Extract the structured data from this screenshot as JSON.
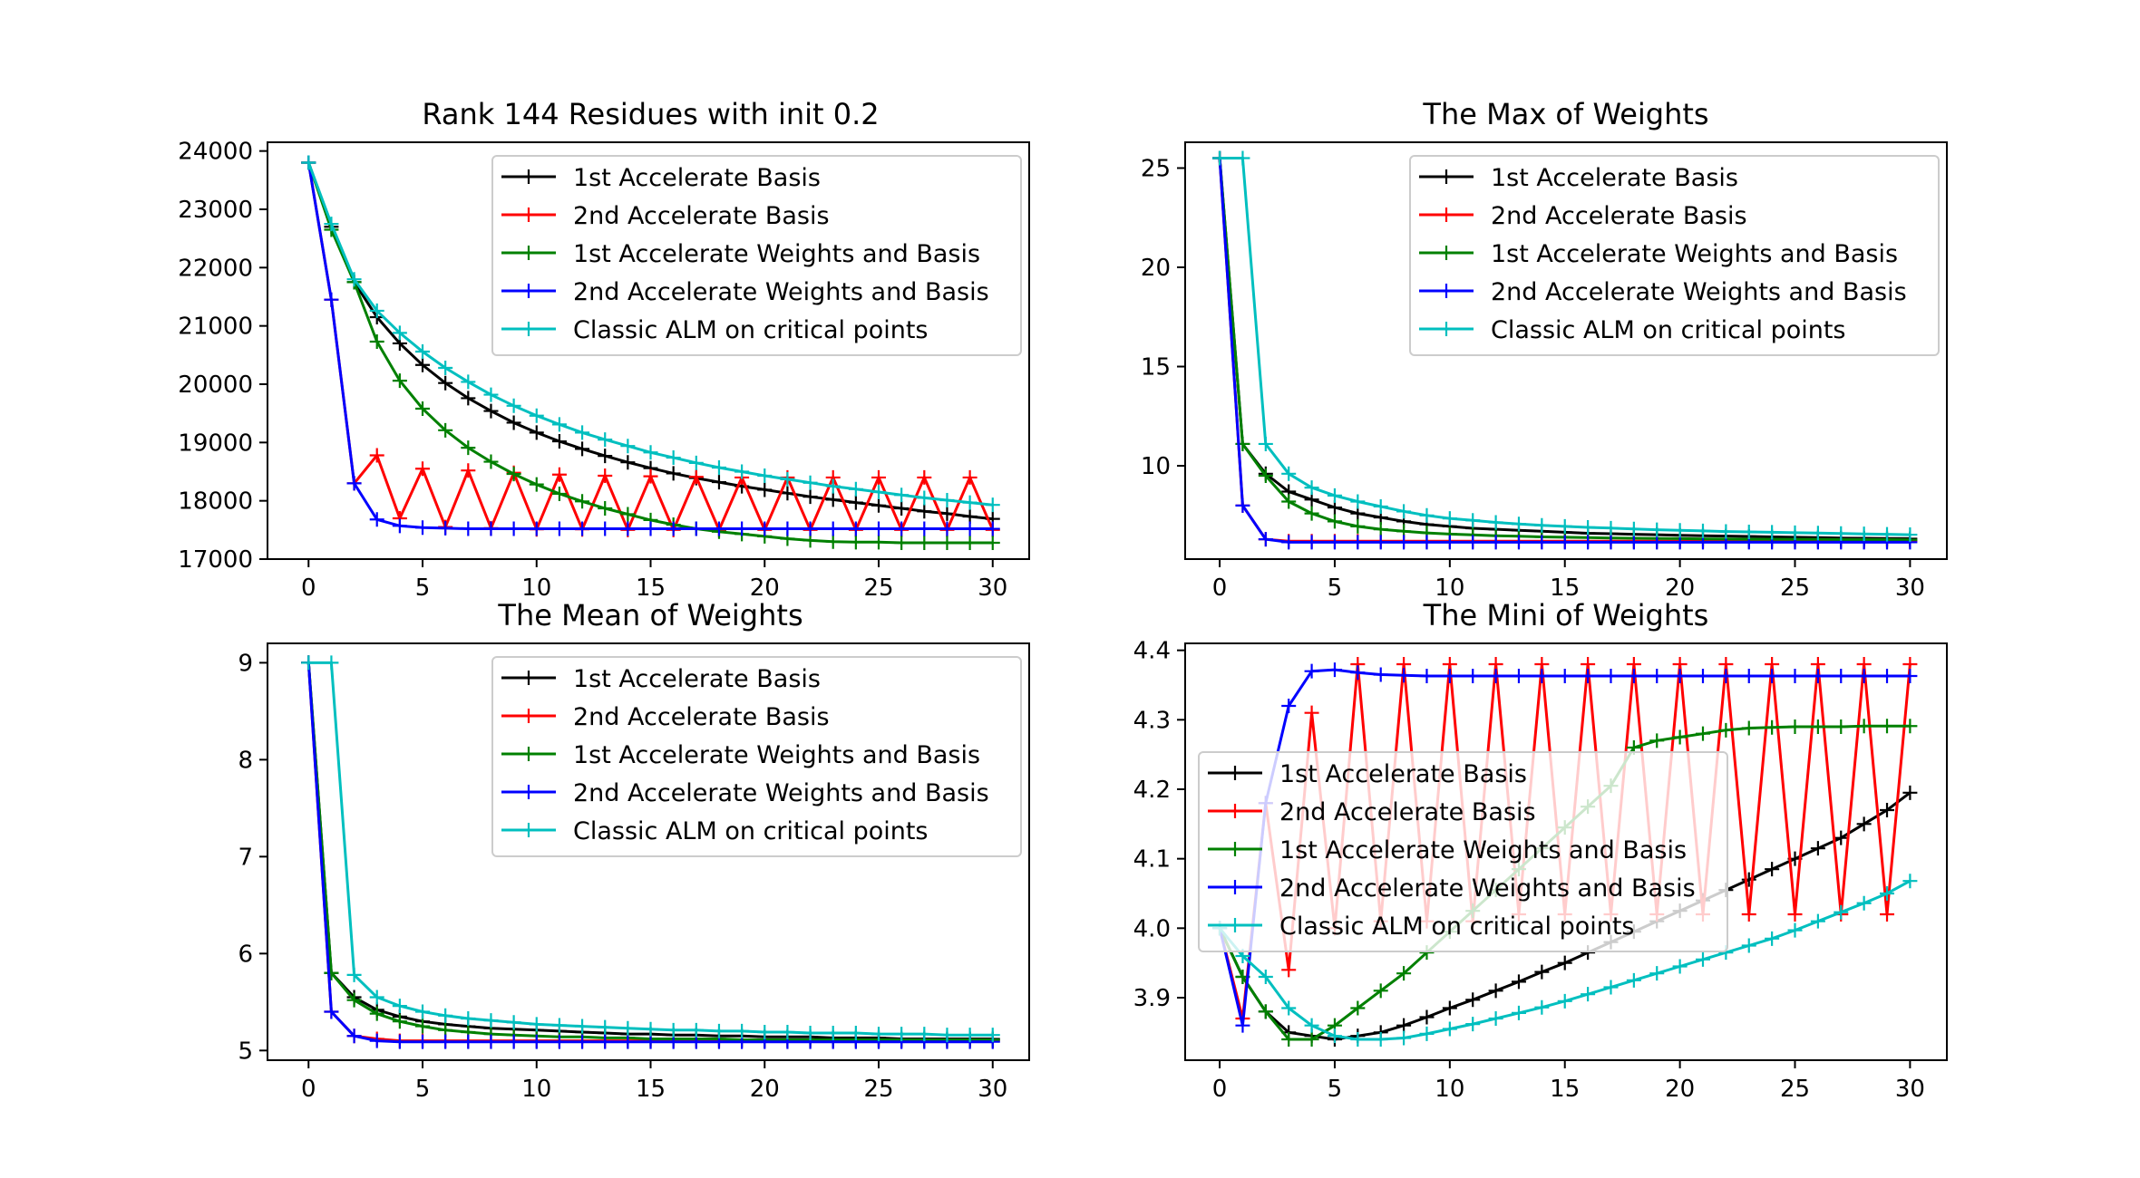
{
  "colors": {
    "black": "#000000",
    "red": "#ff0000",
    "green": "#008000",
    "blue": "#0000ff",
    "cyan": "#00bfbf"
  },
  "chart_data": [
    {
      "type": "line",
      "title": "Rank 144 Residues with init 0.2",
      "xlabel": "",
      "ylabel": "",
      "xlim": [
        -1.8,
        31.6
      ],
      "ylim": [
        17000,
        24150
      ],
      "xticks": [
        0,
        5,
        10,
        15,
        20,
        25,
        30
      ],
      "yticks": [
        17000,
        18000,
        19000,
        20000,
        21000,
        22000,
        23000,
        24000
      ],
      "legend_position": "upper-right",
      "x": [
        0,
        1,
        2,
        3,
        4,
        5,
        6,
        7,
        8,
        9,
        10,
        11,
        12,
        13,
        14,
        15,
        16,
        17,
        18,
        19,
        20,
        21,
        22,
        23,
        24,
        25,
        26,
        27,
        28,
        29,
        30
      ],
      "series": [
        {
          "name": "1st Accelerate Basis",
          "color_key": "black",
          "values": [
            23800,
            22700,
            21750,
            21150,
            20700,
            20330,
            20020,
            19760,
            19540,
            19340,
            19170,
            19020,
            18890,
            18770,
            18660,
            18560,
            18470,
            18390,
            18320,
            18250,
            18190,
            18130,
            18070,
            18020,
            17970,
            17920,
            17870,
            17820,
            17780,
            17730,
            17690
          ]
        },
        {
          "name": "2nd Accelerate Basis",
          "color_key": "red",
          "values": [
            23800,
            21450,
            18300,
            18780,
            17700,
            18550,
            17550,
            18520,
            17530,
            18480,
            17510,
            18450,
            17510,
            18430,
            17500,
            18420,
            17500,
            18410,
            17500,
            18400,
            17500,
            18400,
            17500,
            18400,
            17500,
            18400,
            17500,
            18400,
            17500,
            18400,
            17500
          ]
        },
        {
          "name": "1st Accelerate Weights and Basis",
          "color_key": "green",
          "values": [
            23800,
            22650,
            21750,
            20730,
            20060,
            19580,
            19210,
            18910,
            18670,
            18460,
            18280,
            18120,
            17990,
            17870,
            17770,
            17670,
            17590,
            17520,
            17470,
            17430,
            17390,
            17350,
            17320,
            17300,
            17290,
            17290,
            17280,
            17280,
            17280,
            17280,
            17280
          ]
        },
        {
          "name": "2nd Accelerate Weights and Basis",
          "color_key": "blue",
          "values": [
            23800,
            21450,
            18300,
            17680,
            17570,
            17540,
            17530,
            17520,
            17520,
            17520,
            17520,
            17520,
            17520,
            17520,
            17520,
            17520,
            17520,
            17520,
            17520,
            17520,
            17520,
            17520,
            17520,
            17520,
            17520,
            17520,
            17520,
            17520,
            17520,
            17520,
            17520
          ]
        },
        {
          "name": "Classic ALM on critical points",
          "color_key": "cyan",
          "values": [
            23800,
            22750,
            21800,
            21260,
            20880,
            20560,
            20280,
            20040,
            19820,
            19630,
            19460,
            19310,
            19170,
            19050,
            18940,
            18830,
            18740,
            18650,
            18570,
            18500,
            18430,
            18370,
            18310,
            18250,
            18200,
            18150,
            18100,
            18050,
            18010,
            17970,
            17930
          ]
        }
      ]
    },
    {
      "type": "line",
      "title": "The Max of Weights",
      "xlabel": "",
      "ylabel": "",
      "xlim": [
        -1.5,
        31.6
      ],
      "ylim": [
        5.3,
        26.3
      ],
      "xticks": [
        0,
        5,
        10,
        15,
        20,
        25,
        30
      ],
      "yticks": [
        10,
        15,
        20,
        25
      ],
      "legend_position": "upper-right",
      "x": [
        0,
        1,
        2,
        3,
        4,
        5,
        6,
        7,
        8,
        9,
        10,
        11,
        12,
        13,
        14,
        15,
        16,
        17,
        18,
        19,
        20,
        21,
        22,
        23,
        24,
        25,
        26,
        27,
        28,
        29,
        30
      ],
      "series": [
        {
          "name": "1st Accelerate Basis",
          "color_key": "black",
          "values": [
            25.5,
            11.1,
            9.6,
            8.7,
            8.3,
            7.9,
            7.6,
            7.4,
            7.2,
            7.05,
            6.95,
            6.85,
            6.8,
            6.75,
            6.7,
            6.65,
            6.6,
            6.58,
            6.55,
            6.53,
            6.5,
            6.48,
            6.46,
            6.44,
            6.42,
            6.4,
            6.38,
            6.36,
            6.35,
            6.34,
            6.33
          ]
        },
        {
          "name": "2nd Accelerate Basis",
          "color_key": "red",
          "values": [
            25.5,
            8.0,
            6.3,
            6.2,
            6.2,
            6.2,
            6.2,
            6.2,
            6.2,
            6.2,
            6.2,
            6.2,
            6.2,
            6.2,
            6.2,
            6.2,
            6.2,
            6.2,
            6.2,
            6.2,
            6.2,
            6.2,
            6.2,
            6.2,
            6.2,
            6.2,
            6.2,
            6.2,
            6.2,
            6.2,
            6.2
          ]
        },
        {
          "name": "1st Accelerate Weights and Basis",
          "color_key": "green",
          "values": [
            25.5,
            11.1,
            9.5,
            8.2,
            7.6,
            7.2,
            6.95,
            6.8,
            6.7,
            6.62,
            6.56,
            6.52,
            6.48,
            6.45,
            6.42,
            6.4,
            6.38,
            6.36,
            6.35,
            6.34,
            6.33,
            6.32,
            6.31,
            6.3,
            6.3,
            6.29,
            6.29,
            6.28,
            6.28,
            6.28,
            6.27
          ]
        },
        {
          "name": "2nd Accelerate Weights and Basis",
          "color_key": "blue",
          "values": [
            25.5,
            8.0,
            6.3,
            6.15,
            6.15,
            6.15,
            6.15,
            6.15,
            6.15,
            6.15,
            6.15,
            6.15,
            6.15,
            6.15,
            6.15,
            6.15,
            6.15,
            6.15,
            6.15,
            6.15,
            6.15,
            6.15,
            6.15,
            6.15,
            6.15,
            6.15,
            6.15,
            6.15,
            6.15,
            6.15,
            6.15
          ]
        },
        {
          "name": "Classic ALM on critical points",
          "color_key": "cyan",
          "values": [
            25.5,
            25.5,
            11.1,
            9.6,
            8.9,
            8.5,
            8.2,
            7.95,
            7.7,
            7.5,
            7.35,
            7.25,
            7.15,
            7.07,
            7.0,
            6.95,
            6.9,
            6.86,
            6.82,
            6.78,
            6.75,
            6.72,
            6.69,
            6.67,
            6.65,
            6.63,
            6.61,
            6.59,
            6.57,
            6.55,
            6.53
          ]
        }
      ]
    },
    {
      "type": "line",
      "title": "The Mean of Weights",
      "xlabel": "",
      "ylabel": "",
      "xlim": [
        -1.8,
        31.6
      ],
      "ylim": [
        4.9,
        9.2
      ],
      "xticks": [
        0,
        5,
        10,
        15,
        20,
        25,
        30
      ],
      "yticks": [
        5,
        6,
        7,
        8,
        9
      ],
      "legend_position": "upper-right",
      "x": [
        0,
        1,
        2,
        3,
        4,
        5,
        6,
        7,
        8,
        9,
        10,
        11,
        12,
        13,
        14,
        15,
        16,
        17,
        18,
        19,
        20,
        21,
        22,
        23,
        24,
        25,
        26,
        27,
        28,
        29,
        30
      ],
      "series": [
        {
          "name": "1st Accelerate Basis",
          "color_key": "black",
          "values": [
            9.0,
            5.8,
            5.55,
            5.42,
            5.35,
            5.3,
            5.27,
            5.25,
            5.23,
            5.22,
            5.21,
            5.2,
            5.19,
            5.18,
            5.17,
            5.17,
            5.16,
            5.16,
            5.15,
            5.15,
            5.14,
            5.14,
            5.14,
            5.13,
            5.13,
            5.13,
            5.12,
            5.12,
            5.12,
            5.12,
            5.12
          ]
        },
        {
          "name": "2nd Accelerate Basis",
          "color_key": "red",
          "values": [
            9.0,
            5.4,
            5.15,
            5.12,
            5.1,
            5.1,
            5.1,
            5.1,
            5.1,
            5.1,
            5.1,
            5.1,
            5.1,
            5.1,
            5.1,
            5.1,
            5.1,
            5.1,
            5.1,
            5.1,
            5.1,
            5.1,
            5.1,
            5.1,
            5.1,
            5.1,
            5.1,
            5.1,
            5.1,
            5.1,
            5.1
          ]
        },
        {
          "name": "1st Accelerate Weights and Basis",
          "color_key": "green",
          "values": [
            9.0,
            5.8,
            5.52,
            5.38,
            5.3,
            5.25,
            5.21,
            5.19,
            5.17,
            5.16,
            5.15,
            5.14,
            5.14,
            5.13,
            5.13,
            5.12,
            5.12,
            5.12,
            5.12,
            5.11,
            5.11,
            5.11,
            5.11,
            5.11,
            5.11,
            5.11,
            5.11,
            5.11,
            5.11,
            5.11,
            5.11
          ]
        },
        {
          "name": "2nd Accelerate Weights and Basis",
          "color_key": "blue",
          "values": [
            9.0,
            5.4,
            5.15,
            5.1,
            5.09,
            5.09,
            5.09,
            5.09,
            5.09,
            5.09,
            5.09,
            5.09,
            5.09,
            5.09,
            5.09,
            5.09,
            5.09,
            5.09,
            5.09,
            5.09,
            5.09,
            5.09,
            5.09,
            5.09,
            5.09,
            5.09,
            5.09,
            5.09,
            5.09,
            5.09,
            5.09
          ]
        },
        {
          "name": "Classic ALM on critical points",
          "color_key": "cyan",
          "values": [
            9.0,
            9.0,
            5.78,
            5.55,
            5.46,
            5.4,
            5.36,
            5.33,
            5.31,
            5.29,
            5.27,
            5.26,
            5.25,
            5.24,
            5.23,
            5.22,
            5.21,
            5.21,
            5.2,
            5.2,
            5.19,
            5.19,
            5.18,
            5.18,
            5.18,
            5.17,
            5.17,
            5.17,
            5.16,
            5.16,
            5.16
          ]
        }
      ]
    },
    {
      "type": "line",
      "title": "The Mini of Weights",
      "xlabel": "",
      "ylabel": "",
      "xlim": [
        -1.5,
        31.6
      ],
      "ylim": [
        3.81,
        4.41
      ],
      "xticks": [
        0,
        5,
        10,
        15,
        20,
        25,
        30
      ],
      "yticks": [
        3.9,
        4.0,
        4.1,
        4.2,
        4.3,
        4.4
      ],
      "legend_position": "center-left",
      "x": [
        0,
        1,
        2,
        3,
        4,
        5,
        6,
        7,
        8,
        9,
        10,
        11,
        12,
        13,
        14,
        15,
        16,
        17,
        18,
        19,
        20,
        21,
        22,
        23,
        24,
        25,
        26,
        27,
        28,
        29,
        30
      ],
      "series": [
        {
          "name": "1st Accelerate Basis",
          "color_key": "black",
          "values": [
            4.0,
            3.93,
            3.88,
            3.85,
            3.845,
            3.84,
            3.845,
            3.85,
            3.86,
            3.872,
            3.885,
            3.897,
            3.91,
            3.923,
            3.937,
            3.95,
            3.965,
            3.98,
            3.995,
            4.01,
            4.025,
            4.04,
            4.055,
            4.07,
            4.085,
            4.1,
            4.115,
            4.13,
            4.15,
            4.17,
            4.195
          ]
        },
        {
          "name": "2nd Accelerate Basis",
          "color_key": "red",
          "values": [
            4.0,
            3.87,
            4.18,
            3.94,
            4.31,
            4.0,
            4.38,
            4.01,
            4.38,
            4.01,
            4.38,
            4.01,
            4.38,
            4.02,
            4.38,
            4.02,
            4.38,
            4.02,
            4.38,
            4.02,
            4.38,
            4.02,
            4.38,
            4.02,
            4.38,
            4.02,
            4.38,
            4.02,
            4.38,
            4.02,
            4.38
          ]
        },
        {
          "name": "1st Accelerate Weights and Basis",
          "color_key": "green",
          "values": [
            4.0,
            3.93,
            3.88,
            3.84,
            3.84,
            3.86,
            3.885,
            3.91,
            3.935,
            3.965,
            3.995,
            4.025,
            4.055,
            4.085,
            4.115,
            4.145,
            4.175,
            4.205,
            4.26,
            4.27,
            4.275,
            4.28,
            4.285,
            4.288,
            4.289,
            4.29,
            4.29,
            4.29,
            4.291,
            4.291,
            4.291
          ]
        },
        {
          "name": "2nd Accelerate Weights and Basis",
          "color_key": "blue",
          "values": [
            4.0,
            3.86,
            4.18,
            4.32,
            4.37,
            4.372,
            4.368,
            4.365,
            4.364,
            4.363,
            4.363,
            4.363,
            4.363,
            4.363,
            4.363,
            4.363,
            4.363,
            4.363,
            4.363,
            4.363,
            4.363,
            4.363,
            4.363,
            4.363,
            4.363,
            4.363,
            4.363,
            4.363,
            4.363,
            4.363,
            4.363
          ]
        },
        {
          "name": "Classic ALM on critical points",
          "color_key": "cyan",
          "values": [
            4.0,
            3.96,
            3.93,
            3.885,
            3.86,
            3.845,
            3.84,
            3.84,
            3.842,
            3.848,
            3.855,
            3.862,
            3.87,
            3.878,
            3.886,
            3.895,
            3.905,
            3.915,
            3.925,
            3.935,
            3.945,
            3.955,
            3.965,
            3.975,
            3.985,
            3.997,
            4.01,
            4.023,
            4.036,
            4.05,
            4.068
          ]
        }
      ]
    }
  ]
}
